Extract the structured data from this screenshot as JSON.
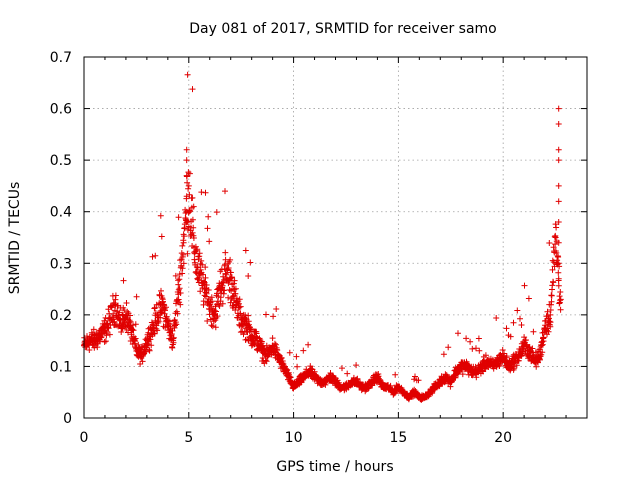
{
  "chart_data": {
    "type": "scatter",
    "title": "Day 081 of 2017, SRMTID for receiver samo",
    "xlabel": "GPS time / hours",
    "ylabel": "SRMTID / TECUs",
    "xlim": [
      0,
      24
    ],
    "ylim": [
      0,
      0.7
    ],
    "x_ticks": [
      0,
      5,
      10,
      15,
      20
    ],
    "x_tick_labels": [
      "0",
      "5",
      "10",
      "15",
      "20"
    ],
    "y_ticks": [
      0,
      0.1,
      0.2,
      0.3,
      0.4,
      0.5,
      0.6,
      0.7
    ],
    "y_tick_labels": [
      "0",
      "0.1",
      "0.2",
      "0.3",
      "0.4",
      "0.5",
      "0.6",
      "0.7"
    ],
    "grid": true,
    "marker": "plus",
    "color": "#e00000",
    "series": [
      {
        "name": "SRMTID",
        "x": [
          0.0,
          0.25,
          0.5,
          0.75,
          1.0,
          1.25,
          1.5,
          1.75,
          2.0,
          2.25,
          2.5,
          2.75,
          3.0,
          3.25,
          3.5,
          3.75,
          4.0,
          4.25,
          4.5,
          4.75,
          5.0,
          5.25,
          5.5,
          5.75,
          6.0,
          6.25,
          6.5,
          6.75,
          7.0,
          7.25,
          7.5,
          7.75,
          8.0,
          8.25,
          8.5,
          8.75,
          9.0,
          9.25,
          9.5,
          9.75,
          10.0,
          10.25,
          10.5,
          10.75,
          11.0,
          11.25,
          11.5,
          11.75,
          12.0,
          12.25,
          12.5,
          12.75,
          13.0,
          13.25,
          13.5,
          13.75,
          14.0,
          14.25,
          14.5,
          14.75,
          15.0,
          15.25,
          15.5,
          15.75,
          16.0,
          16.25,
          16.5,
          16.75,
          17.0,
          17.25,
          17.5,
          17.75,
          18.0,
          18.25,
          18.5,
          18.75,
          19.0,
          19.25,
          19.5,
          19.75,
          20.0,
          20.25,
          20.5,
          20.75,
          21.0,
          21.25,
          21.5,
          21.75,
          22.0,
          22.25,
          22.5,
          22.75
        ],
        "y": [
          0.14,
          0.15,
          0.15,
          0.16,
          0.17,
          0.19,
          0.22,
          0.18,
          0.2,
          0.17,
          0.13,
          0.12,
          0.15,
          0.17,
          0.2,
          0.22,
          0.18,
          0.15,
          0.24,
          0.34,
          0.45,
          0.33,
          0.28,
          0.25,
          0.22,
          0.2,
          0.25,
          0.28,
          0.27,
          0.22,
          0.19,
          0.18,
          0.16,
          0.15,
          0.13,
          0.12,
          0.14,
          0.12,
          0.1,
          0.08,
          0.06,
          0.07,
          0.08,
          0.09,
          0.08,
          0.07,
          0.07,
          0.08,
          0.07,
          0.06,
          0.06,
          0.07,
          0.07,
          0.06,
          0.06,
          0.07,
          0.08,
          0.06,
          0.06,
          0.05,
          0.06,
          0.05,
          0.04,
          0.05,
          0.04,
          0.04,
          0.05,
          0.06,
          0.07,
          0.08,
          0.07,
          0.09,
          0.1,
          0.1,
          0.09,
          0.09,
          0.1,
          0.11,
          0.1,
          0.11,
          0.12,
          0.1,
          0.11,
          0.12,
          0.14,
          0.13,
          0.11,
          0.12,
          0.18,
          0.2,
          0.35,
          0.23
        ]
      }
    ]
  }
}
